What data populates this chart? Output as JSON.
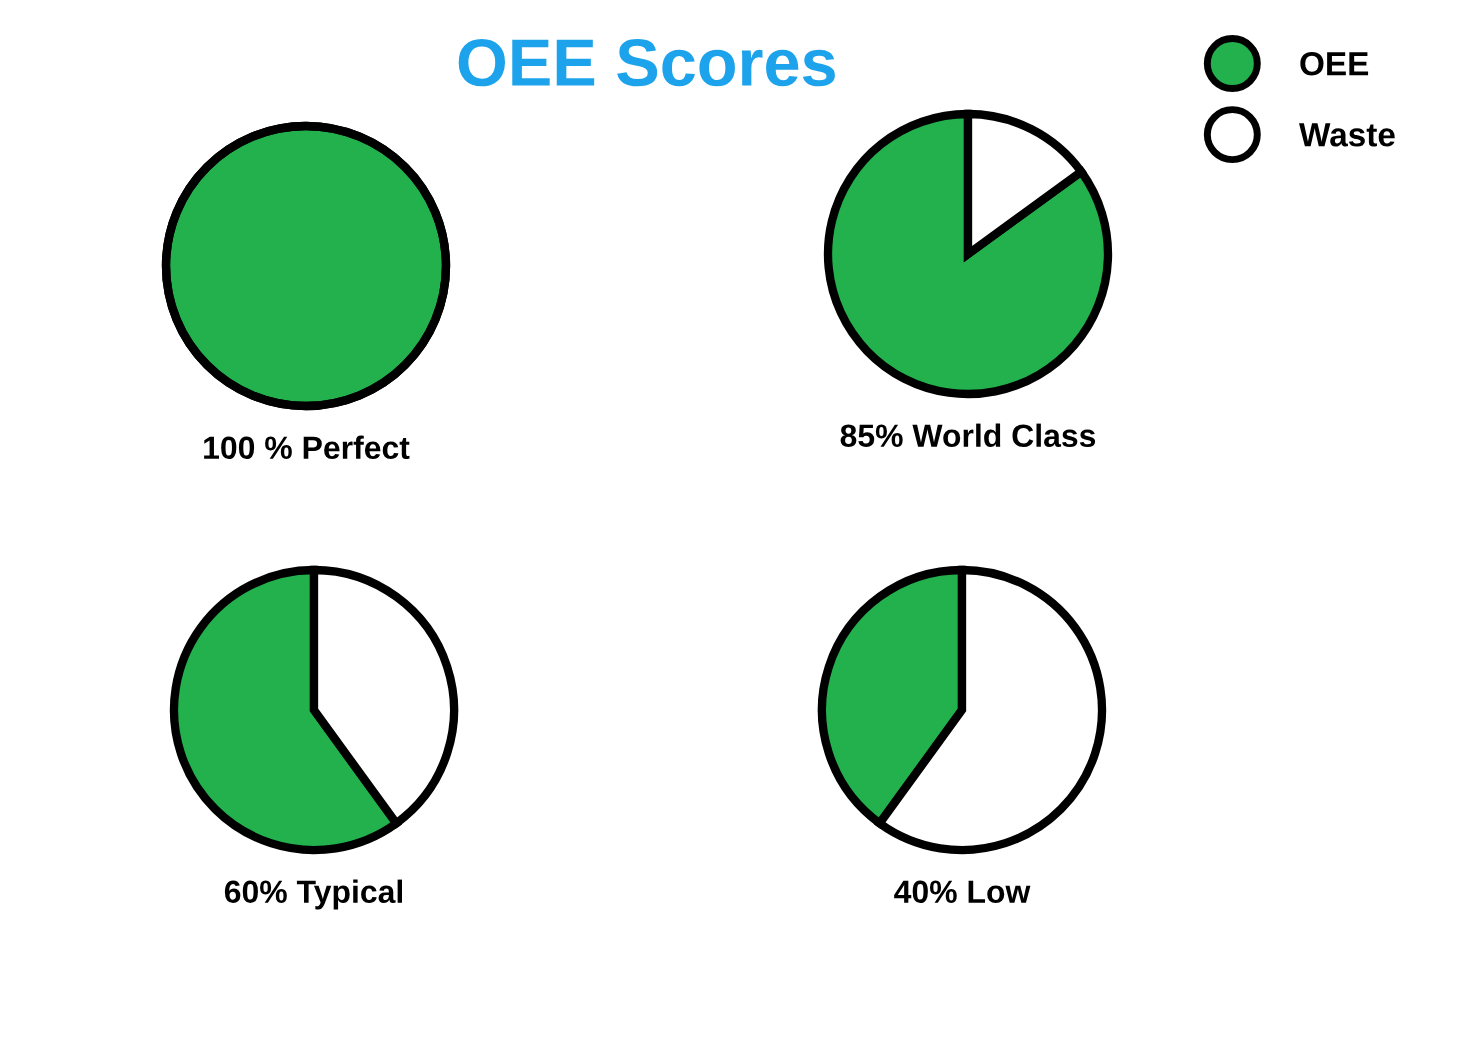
{
  "chart_data": [
    {
      "type": "pie",
      "title": "OEE Scores",
      "xlabel": "100 % Perfect",
      "categories": [
        null,
        null
      ],
      "values": [
        100,
        0
      ],
      "colors": [
        "#22b14c",
        "#ffffff"
      ]
    },
    {
      "type": "pie",
      "xlabel": "85% World Class",
      "categories": [
        "OEE",
        "Waste"
      ],
      "values": [
        85,
        15
      ],
      "colors": [
        "#22b14c",
        "#ffffff"
      ],
      "legend": "top right"
    },
    {
      "type": "pie",
      "xlabel": "60% Typical",
      "categories": [
        null,
        null
      ],
      "values": [
        60,
        40
      ],
      "colors": [
        "#22b14c",
        "#ffffff"
      ]
    },
    {
      "type": "pie",
      "xlabel": "40% Low",
      "categories": [
        null,
        null
      ],
      "values": [
        40,
        60
      ],
      "colors": [
        "#22b14c",
        "#ffffff"
      ]
    }
  ]
}
